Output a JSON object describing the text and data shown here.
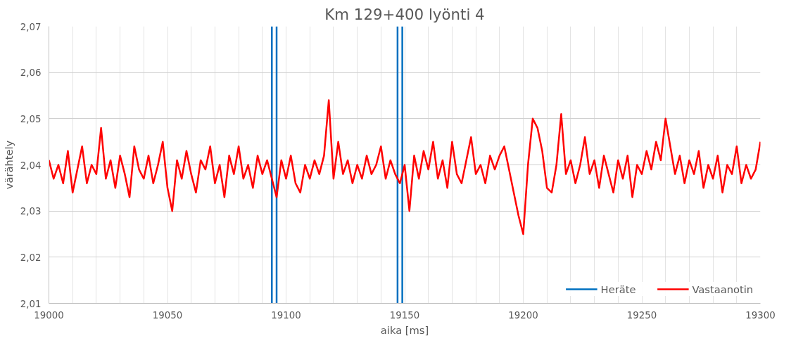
{
  "chart_data": {
    "type": "line",
    "title": "Km 129+400 lyönti 4",
    "xlabel": "aika [ms]",
    "ylabel": "värähtely",
    "xlim": [
      19000,
      19300
    ],
    "ylim": [
      2.01,
      2.07
    ],
    "xticks": [
      19000,
      {
        "value": 19010,
        "label": null
      },
      {
        "value": 19020,
        "label": null
      },
      {
        "value": 19030,
        "label": null
      },
      {
        "value": 19040,
        "label": null
      },
      19050,
      {
        "value": 19060,
        "label": null
      },
      {
        "value": 19070,
        "label": null
      },
      {
        "value": 19080,
        "label": null
      },
      {
        "value": 19090,
        "label": null
      },
      19100,
      {
        "value": 19110,
        "label": null
      },
      {
        "value": 19120,
        "label": null
      },
      {
        "value": 19130,
        "label": null
      },
      {
        "value": 19140,
        "label": null
      },
      19150,
      {
        "value": 19160,
        "label": null
      },
      {
        "value": 19170,
        "label": null
      },
      {
        "value": 19180,
        "label": null
      },
      {
        "value": 19190,
        "label": null
      },
      19200,
      {
        "value": 19210,
        "label": null
      },
      {
        "value": 19220,
        "label": null
      },
      {
        "value": 19230,
        "label": null
      },
      {
        "value": 19240,
        "label": null
      },
      19250,
      {
        "value": 19260,
        "label": null
      },
      {
        "value": 19270,
        "label": null
      },
      {
        "value": 19280,
        "label": null
      },
      {
        "value": 19290,
        "label": null
      },
      19300
    ],
    "yticks": [
      {
        "value": 2.01,
        "label": "2,01"
      },
      {
        "value": 2.02,
        "label": "2,02"
      },
      {
        "value": 2.03,
        "label": "2,03"
      },
      {
        "value": 2.04,
        "label": "2,04"
      },
      {
        "value": 2.05,
        "label": "2,05"
      },
      {
        "value": 2.06,
        "label": "2,06"
      },
      {
        "value": 2.07,
        "label": "2,07"
      }
    ],
    "grid": true,
    "legend": "bottom right",
    "marker": "none",
    "line_style": "solid",
    "series": [
      {
        "name": "Heräte",
        "color": "#0070c0",
        "x": [
          19094,
          19094,
          null,
          19096,
          19096,
          null,
          19147,
          19147,
          null,
          19149,
          19149
        ],
        "values": [
          2.01,
          2.07,
          null,
          2.01,
          2.07,
          null,
          2.01,
          2.07,
          null,
          2.01,
          2.07
        ]
      },
      {
        "name": "Vastaanotin",
        "color": "#ff0000",
        "x": [
          19000,
          19002,
          19004,
          19006,
          19008,
          19010,
          19012,
          19014,
          19016,
          19018,
          19020,
          19022,
          19024,
          19026,
          19028,
          19030,
          19032,
          19034,
          19036,
          19038,
          19040,
          19042,
          19044,
          19046,
          19048,
          19050,
          19052,
          19054,
          19056,
          19058,
          19060,
          19062,
          19064,
          19066,
          19068,
          19070,
          19072,
          19074,
          19076,
          19078,
          19080,
          19082,
          19084,
          19086,
          19088,
          19090,
          19092,
          19094,
          19096,
          19098,
          19100,
          19102,
          19104,
          19106,
          19108,
          19110,
          19112,
          19114,
          19116,
          19118,
          19120,
          19122,
          19124,
          19126,
          19128,
          19130,
          19132,
          19134,
          19136,
          19138,
          19140,
          19142,
          19144,
          19146,
          19148,
          19150,
          19152,
          19154,
          19156,
          19158,
          19160,
          19162,
          19164,
          19166,
          19168,
          19170,
          19172,
          19174,
          19176,
          19178,
          19180,
          19182,
          19184,
          19186,
          19188,
          19190,
          19192,
          19194,
          19196,
          19198,
          19200,
          19202,
          19204,
          19206,
          19208,
          19210,
          19212,
          19214,
          19216,
          19218,
          19220,
          19222,
          19224,
          19226,
          19228,
          19230,
          19232,
          19234,
          19236,
          19238,
          19240,
          19242,
          19244,
          19246,
          19248,
          19250,
          19252,
          19254,
          19256,
          19258,
          19260,
          19262,
          19264,
          19266,
          19268,
          19270,
          19272,
          19274,
          19276,
          19278,
          19280,
          19282,
          19284,
          19286,
          19288,
          19290,
          19292,
          19294,
          19296,
          19298,
          19300
        ],
        "values": [
          2.041,
          2.037,
          2.04,
          2.036,
          2.043,
          2.034,
          2.039,
          2.044,
          2.036,
          2.04,
          2.038,
          2.048,
          2.037,
          2.041,
          2.035,
          2.042,
          2.038,
          2.033,
          2.044,
          2.039,
          2.037,
          2.042,
          2.036,
          2.04,
          2.045,
          2.035,
          2.03,
          2.041,
          2.037,
          2.043,
          2.038,
          2.034,
          2.041,
          2.039,
          2.044,
          2.036,
          2.04,
          2.033,
          2.042,
          2.038,
          2.044,
          2.037,
          2.04,
          2.035,
          2.042,
          2.038,
          2.041,
          2.037,
          2.033,
          2.041,
          2.037,
          2.042,
          2.036,
          2.034,
          2.04,
          2.037,
          2.041,
          2.038,
          2.042,
          2.054,
          2.037,
          2.045,
          2.038,
          2.041,
          2.036,
          2.04,
          2.037,
          2.042,
          2.038,
          2.04,
          2.044,
          2.037,
          2.041,
          2.038,
          2.036,
          2.04,
          2.03,
          2.042,
          2.037,
          2.043,
          2.039,
          2.045,
          2.037,
          2.041,
          2.035,
          2.045,
          2.038,
          2.036,
          2.041,
          2.046,
          2.038,
          2.04,
          2.036,
          2.042,
          2.039,
          2.042,
          2.044,
          2.039,
          2.034,
          2.029,
          2.025,
          2.04,
          2.05,
          2.048,
          2.043,
          2.035,
          2.034,
          2.04,
          2.051,
          2.038,
          2.041,
          2.036,
          2.04,
          2.046,
          2.038,
          2.041,
          2.035,
          2.042,
          2.038,
          2.034,
          2.041,
          2.037,
          2.042,
          2.033,
          2.04,
          2.038,
          2.043,
          2.039,
          2.045,
          2.041,
          2.05,
          2.044,
          2.038,
          2.042,
          2.036,
          2.041,
          2.038,
          2.043,
          2.035,
          2.04,
          2.037,
          2.042,
          2.034,
          2.04,
          2.038,
          2.044,
          2.036,
          2.04,
          2.037,
          2.039,
          2.045
        ]
      }
    ]
  }
}
